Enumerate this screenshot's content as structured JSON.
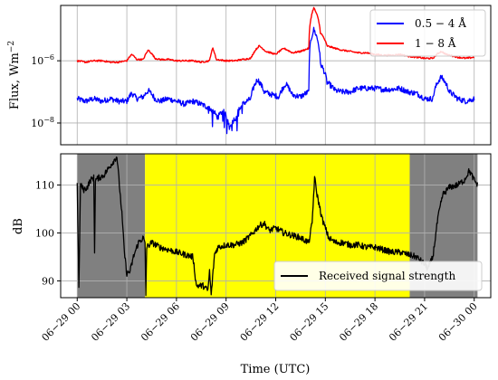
{
  "chart_data": [
    {
      "type": "line",
      "ylabel": "Flux, Wm",
      "ylabel_sup": "−2",
      "yscale": "log",
      "ylim": [
        2e-09,
        6e-05
      ],
      "yticks": [
        {
          "value": 1e-06,
          "base": "10",
          "exp": "−6"
        },
        {
          "value": 1e-08,
          "base": "10",
          "exp": "−8"
        }
      ],
      "xlim": [
        -1,
        25
      ],
      "grid": true,
      "legend_position": "top-right",
      "series": [
        {
          "name": "0.5 − 4 Å",
          "color": "#0000ff",
          "points": [
            [
              0,
              6e-08
            ],
            [
              0.5,
              5e-08
            ],
            [
              1,
              6e-08
            ],
            [
              1.5,
              5e-08
            ],
            [
              2,
              6e-08
            ],
            [
              2.5,
              5e-08
            ],
            [
              3,
              5e-08
            ],
            [
              3.3,
              9e-08
            ],
            [
              3.6,
              6e-08
            ],
            [
              4,
              7e-08
            ],
            [
              4.3,
              1.1e-07
            ],
            [
              4.7,
              6e-08
            ],
            [
              5,
              5e-08
            ],
            [
              5.5,
              6e-08
            ],
            [
              6,
              5e-08
            ],
            [
              6.5,
              4e-08
            ],
            [
              7,
              5e-08
            ],
            [
              7.5,
              4e-08
            ],
            [
              8,
              3e-08
            ],
            [
              8.5,
              1.5e-08
            ],
            [
              8.8,
              2.5e-08
            ],
            [
              9.2,
              8e-09
            ],
            [
              9.6,
              1.5e-08
            ],
            [
              10,
              4e-08
            ],
            [
              10.5,
              6e-08
            ],
            [
              10.9,
              2.5e-07
            ],
            [
              11.3,
              1e-07
            ],
            [
              11.8,
              8e-08
            ],
            [
              12.2,
              7e-08
            ],
            [
              12.6,
              1.8e-07
            ],
            [
              13,
              8e-08
            ],
            [
              13.5,
              7e-08
            ],
            [
              14,
              1e-07
            ],
            [
              14.3,
              1e-05
            ],
            [
              14.7,
              8e-07
            ],
            [
              15.1,
              2e-07
            ],
            [
              15.6,
              1.1e-07
            ],
            [
              16,
              1e-07
            ],
            [
              16.5,
              1e-07
            ],
            [
              17,
              1.3e-07
            ],
            [
              17.5,
              1.3e-07
            ],
            [
              18,
              1.3e-07
            ],
            [
              18.5,
              1.2e-07
            ],
            [
              19,
              1.2e-07
            ],
            [
              19.5,
              1.3e-07
            ],
            [
              20,
              1e-07
            ],
            [
              20.5,
              9e-08
            ],
            [
              21,
              6e-08
            ],
            [
              21.5,
              6e-08
            ],
            [
              22,
              3e-07
            ],
            [
              22.5,
              1e-07
            ],
            [
              23,
              6e-08
            ],
            [
              23.5,
              5e-08
            ],
            [
              24,
              6e-08
            ]
          ]
        },
        {
          "name": "1 − 8 Å",
          "color": "#ff0000",
          "points": [
            [
              0,
              1e-06
            ],
            [
              0.5,
              9e-07
            ],
            [
              1,
              1e-06
            ],
            [
              1.5,
              1e-06
            ],
            [
              2,
              9e-07
            ],
            [
              2.5,
              9e-07
            ],
            [
              3,
              1e-06
            ],
            [
              3.3,
              1.6e-06
            ],
            [
              3.6,
              1.1e-06
            ],
            [
              4,
              1.1e-06
            ],
            [
              4.3,
              2.2e-06
            ],
            [
              4.7,
              1.2e-06
            ],
            [
              5,
              1.1e-06
            ],
            [
              5.5,
              1.1e-06
            ],
            [
              6,
              1e-06
            ],
            [
              6.5,
              1e-06
            ],
            [
              7,
              1e-06
            ],
            [
              7.5,
              9e-07
            ],
            [
              8,
              1e-06
            ],
            [
              8.2,
              2.5e-06
            ],
            [
              8.4,
              1.1e-06
            ],
            [
              9,
              1e-06
            ],
            [
              9.5,
              1e-06
            ],
            [
              10,
              1.1e-06
            ],
            [
              10.5,
              1.2e-06
            ],
            [
              11,
              3e-06
            ],
            [
              11.4,
              2e-06
            ],
            [
              12,
              1.6e-06
            ],
            [
              12.5,
              2.5e-06
            ],
            [
              13,
              1.8e-06
            ],
            [
              13.5,
              2e-06
            ],
            [
              14,
              2.5e-06
            ],
            [
              14.3,
              5e-05
            ],
            [
              14.7,
              8e-06
            ],
            [
              15.1,
              3e-06
            ],
            [
              15.6,
              2.5e-06
            ],
            [
              16,
              2.2e-06
            ],
            [
              16.5,
              2e-06
            ],
            [
              17,
              1.8e-06
            ],
            [
              17.5,
              1.8e-06
            ],
            [
              18,
              1.6e-06
            ],
            [
              18.5,
              1.5e-06
            ],
            [
              19,
              1.5e-06
            ],
            [
              19.5,
              1.6e-06
            ],
            [
              20,
              1.4e-06
            ],
            [
              20.5,
              1.3e-06
            ],
            [
              21,
              1.2e-06
            ],
            [
              21.5,
              1.2e-06
            ],
            [
              22,
              2e-06
            ],
            [
              22.3,
              1.6e-06
            ],
            [
              23,
              1.3e-06
            ],
            [
              23.5,
              1.2e-06
            ],
            [
              24,
              1.3e-06
            ]
          ]
        }
      ]
    },
    {
      "type": "line",
      "ylabel": "dB",
      "ylim": [
        86.5,
        116.5
      ],
      "yticks": [
        90,
        100,
        110
      ],
      "xlim": [
        -1,
        25
      ],
      "xlabel": "Time (UTC)",
      "xticks": [
        {
          "value": 0,
          "label": "06−29 00"
        },
        {
          "value": 3,
          "label": "06−29 03"
        },
        {
          "value": 6,
          "label": "06−29 06"
        },
        {
          "value": 9,
          "label": "06−29 09"
        },
        {
          "value": 12,
          "label": "06−29 12"
        },
        {
          "value": 15,
          "label": "06−29 15"
        },
        {
          "value": 18,
          "label": "06−29 18"
        },
        {
          "value": 21,
          "label": "06−29 21"
        },
        {
          "value": 24,
          "label": "06−30 00"
        }
      ],
      "grid": true,
      "legend_position": "bottom-right",
      "shaded_regions": [
        {
          "from": 0,
          "to": 4.1,
          "color": "#808080"
        },
        {
          "from": 4.1,
          "to": 20.1,
          "color": "#ffff00"
        },
        {
          "from": 20.1,
          "to": 24.2,
          "color": "#808080"
        }
      ],
      "series": [
        {
          "name": "Received signal strength",
          "color": "#000000",
          "points": [
            [
              0,
              110
            ],
            [
              0.1,
              88.5
            ],
            [
              0.2,
              110
            ],
            [
              0.4,
              109
            ],
            [
              0.6,
              109.5
            ],
            [
              0.8,
              111
            ],
            [
              1,
              111.5
            ],
            [
              1.05,
              96
            ],
            [
              1.1,
              111
            ],
            [
              1.3,
              111.5
            ],
            [
              1.6,
              112
            ],
            [
              1.8,
              113
            ],
            [
              2,
              114
            ],
            [
              2.2,
              115
            ],
            [
              2.4,
              116
            ],
            [
              2.55,
              110
            ],
            [
              2.7,
              104
            ],
            [
              2.85,
              96
            ],
            [
              3,
              91.5
            ],
            [
              3.2,
              92
            ],
            [
              3.4,
              95
            ],
            [
              3.7,
              98
            ],
            [
              4,
              99
            ],
            [
              4.1,
              97.5
            ],
            [
              4.15,
              87
            ],
            [
              4.2,
              97
            ],
            [
              4.5,
              98
            ],
            [
              5,
              97
            ],
            [
              5.5,
              96.5
            ],
            [
              6,
              96
            ],
            [
              6.5,
              95.5
            ],
            [
              7,
              95
            ],
            [
              7.2,
              89
            ],
            [
              7.6,
              89
            ],
            [
              7.9,
              88
            ],
            [
              8,
              92
            ],
            [
              8.1,
              87
            ],
            [
              8.3,
              95.5
            ],
            [
              8.5,
              97
            ],
            [
              9,
              97.5
            ],
            [
              9.5,
              97.5
            ],
            [
              10,
              98
            ],
            [
              10.5,
              99.5
            ],
            [
              11,
              101.5
            ],
            [
              11.3,
              102
            ],
            [
              11.6,
              100.5
            ],
            [
              12,
              101
            ],
            [
              12.5,
              100
            ],
            [
              13,
              99.5
            ],
            [
              13.5,
              99
            ],
            [
              14,
              98
            ],
            [
              14.2,
              102
            ],
            [
              14.35,
              111.5
            ],
            [
              14.5,
              108
            ],
            [
              14.8,
              103
            ],
            [
              15.2,
              99
            ],
            [
              15.6,
              98
            ],
            [
              16,
              98
            ],
            [
              16.5,
              97.5
            ],
            [
              17,
              97.5
            ],
            [
              17.5,
              97
            ],
            [
              18,
              97
            ],
            [
              18.5,
              96.5
            ],
            [
              19,
              96
            ],
            [
              19.5,
              96
            ],
            [
              20,
              95.5
            ],
            [
              20.5,
              95
            ],
            [
              21,
              93.5
            ],
            [
              21.2,
              92.5
            ],
            [
              21.5,
              95
            ],
            [
              21.8,
              103
            ],
            [
              22.1,
              108
            ],
            [
              22.5,
              109.5
            ],
            [
              23,
              110
            ],
            [
              23.4,
              111
            ],
            [
              23.7,
              113
            ],
            [
              24,
              111
            ],
            [
              24.2,
              110
            ]
          ]
        }
      ]
    }
  ]
}
